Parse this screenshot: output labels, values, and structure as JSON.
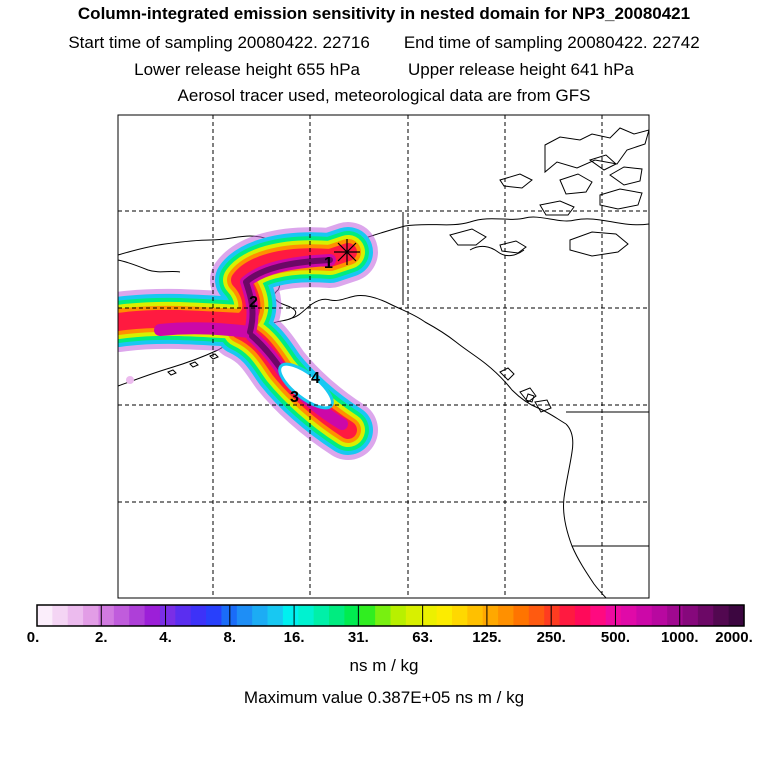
{
  "header": {
    "title": "Column-integrated emission sensitivity in nested domain for NP3_20080421",
    "start_label": "Start time of sampling 20080422. 22716",
    "end_label": "End time of sampling 20080422. 22742",
    "lower_label": "Lower release height  655 hPa",
    "upper_label": "Upper release height  641 hPa",
    "info": "Aerosol tracer used, meteorological data are from GFS"
  },
  "map": {
    "markers": [
      {
        "label": "1"
      },
      {
        "label": "2"
      },
      {
        "label": "3"
      },
      {
        "label": "4"
      }
    ],
    "release_point": "asterisk-marker"
  },
  "legend": {
    "tick_labels": [
      "0.",
      "2.",
      "4.",
      "8.",
      "16.",
      "31.",
      "63.",
      "125.",
      "250.",
      "500.",
      "1000.",
      "2000."
    ],
    "colors": [
      "#fbeefb",
      "#f4d5f4",
      "#ecbbee",
      "#e29de6",
      "#d17ae0",
      "#c05cdc",
      "#ae3fd8",
      "#9c1fd8",
      "#7a2ee6",
      "#5b2ef0",
      "#3d32f8",
      "#2840fc",
      "#1a6cf8",
      "#1e8ef6",
      "#1cacf4",
      "#18c8f2",
      "#00f0f0",
      "#00f2d0",
      "#00f0a8",
      "#00ec80",
      "#00ec50",
      "#30ee20",
      "#78f010",
      "#b8f000",
      "#d8f000",
      "#ecf000",
      "#fcec00",
      "#ffd800",
      "#ffc000",
      "#ffa800",
      "#ff9000",
      "#ff7400",
      "#ff5a10",
      "#ff3c20",
      "#ff1a40",
      "#ff0a5a",
      "#ff0a80",
      "#ee0aa0",
      "#e00aa8",
      "#cc08a8",
      "#b808a0",
      "#a00890",
      "#86087c",
      "#6c0866",
      "#520850",
      "#3c0640"
    ],
    "units": "ns m / kg",
    "maximum": "Maximum value  0.387E+05 ns m / kg"
  }
}
